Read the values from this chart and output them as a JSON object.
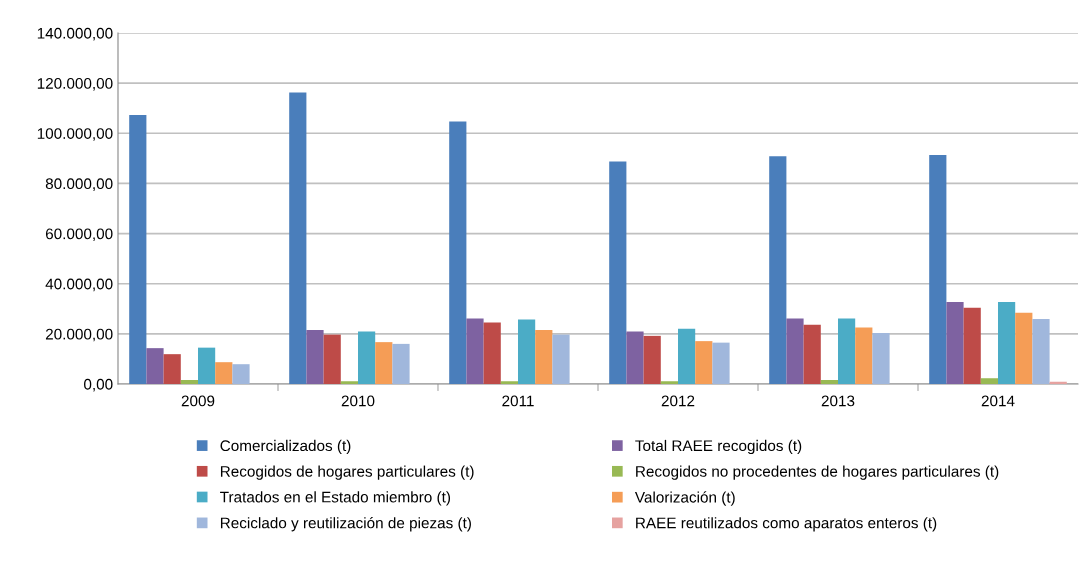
{
  "chart_data": {
    "type": "bar",
    "categories": [
      "2009",
      "2010",
      "2011",
      "2012",
      "2013",
      "2014"
    ],
    "series": [
      {
        "name": "Comercializados (t)",
        "color": "#4a7ebb",
        "values": [
          107300,
          116300,
          104700,
          88700,
          90800,
          91300
        ]
      },
      {
        "name": "Total RAEE recogidos (t)",
        "color": "#7e62a1",
        "values": [
          14300,
          21500,
          26100,
          20900,
          26100,
          32700
        ]
      },
      {
        "name": "Recogidos de hogares particulares (t)",
        "color": "#be4b48",
        "values": [
          11900,
          19700,
          24500,
          19200,
          23600,
          30400
        ]
      },
      {
        "name": "Recogidos no procedentes de hogares particulares (t)",
        "color": "#98b954",
        "values": [
          1600,
          1100,
          1100,
          1100,
          1600,
          2300
        ]
      },
      {
        "name": "Tratados en el Estado miembro (t)",
        "color": "#4bacc6",
        "values": [
          14500,
          20900,
          25700,
          22000,
          26100,
          32700
        ]
      },
      {
        "name": "Valorización (t)",
        "color": "#f59d56",
        "values": [
          8700,
          16700,
          21500,
          17100,
          22500,
          28400
        ]
      },
      {
        "name": "Reciclado y reutilización de piezas (t)",
        "color": "#a0b7dc",
        "values": [
          7900,
          16000,
          19700,
          16500,
          20300,
          25900
        ]
      },
      {
        "name": "RAEE reutilizados como aparatos enteros (t)",
        "color": "#e6a2a0",
        "values": [
          null,
          null,
          null,
          null,
          null,
          900
        ]
      }
    ],
    "ylim": [
      0,
      140000
    ],
    "yticks": [
      {
        "value": 0,
        "label": "0,00"
      },
      {
        "value": 20000,
        "label": "20.000,00"
      },
      {
        "value": 40000,
        "label": "40.000,00"
      },
      {
        "value": 60000,
        "label": "60.000,00"
      },
      {
        "value": 80000,
        "label": "80.000,00"
      },
      {
        "value": 100000,
        "label": "100.000,00"
      },
      {
        "value": 120000,
        "label": "120.000,00"
      },
      {
        "value": 140000,
        "label": "140.000,00"
      }
    ],
    "grid": "y",
    "legend": "bottom"
  }
}
